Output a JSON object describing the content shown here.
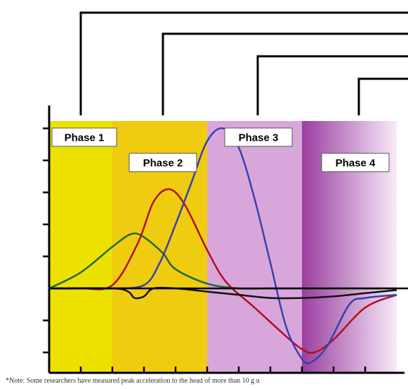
{
  "colors": {
    "phase1": "#ede100",
    "phase2": "#f0cc10",
    "phase3": "#d9a6dc",
    "phase4_dark": "#9a3fa0",
    "phase4_light": "#f8eaf8",
    "axis": "#000000",
    "green": "#1e6b2d",
    "red": "#b0101e",
    "blue": "#3a3fae",
    "black": "#111111"
  },
  "chart_data": {
    "type": "line",
    "title": "",
    "xlabel": "",
    "ylabel": "",
    "xlim": [
      0,
      10
    ],
    "ylim": [
      -2.6,
      5.2
    ],
    "grid": false,
    "x_ticks": [
      1,
      2,
      3,
      4,
      5,
      6,
      7,
      8,
      9,
      10
    ],
    "y_ticks": [
      -2,
      -1,
      1,
      2,
      3,
      4,
      5
    ],
    "phases": [
      {
        "label": "Phase 1",
        "x_start": 0.0,
        "x_end": 2.0,
        "color": "phase1"
      },
      {
        "label": "Phase 2",
        "x_start": 2.0,
        "x_end": 5.0,
        "color": "phase2"
      },
      {
        "label": "Phase 3",
        "x_start": 5.0,
        "x_end": 8.0,
        "color": "phase3"
      },
      {
        "label": "Phase 4",
        "x_start": 8.0,
        "x_end": 11.0,
        "color": "phase4"
      }
    ],
    "series": [
      {
        "color": "green",
        "x": [
          0,
          1,
          2,
          2.6,
          3,
          3.6,
          4,
          5,
          6,
          7,
          8,
          9,
          10,
          11
        ],
        "y": [
          0,
          0.5,
          1.3,
          1.7,
          1.6,
          1.1,
          0.6,
          0.15,
          0,
          0,
          0,
          0,
          0,
          0
        ]
      },
      {
        "color": "red",
        "x": [
          0,
          1,
          2,
          2.8,
          3.3,
          3.8,
          4.3,
          5,
          5.6,
          6.5,
          7.5,
          8,
          8.4,
          9,
          10,
          11
        ],
        "y": [
          0,
          0,
          0.1,
          1.4,
          2.7,
          3.1,
          2.6,
          1.2,
          0.2,
          -0.6,
          -1.5,
          -1.9,
          -2.0,
          -1.6,
          -0.6,
          -0.2
        ]
      },
      {
        "color": "blue",
        "x": [
          0,
          1.5,
          2,
          3,
          3.5,
          4,
          4.5,
          5,
          5.5,
          6,
          6.5,
          7,
          7.5,
          8,
          8.3,
          8.8,
          9.5,
          10,
          11
        ],
        "y": [
          0,
          0,
          0,
          0.1,
          0.8,
          2.0,
          3.3,
          4.6,
          5.0,
          4.4,
          2.8,
          0.8,
          -1.2,
          -2.2,
          -2.3,
          -1.8,
          -0.5,
          -0.3,
          -0.2
        ]
      },
      {
        "color": "black",
        "x": [
          0,
          2,
          2.5,
          2.7,
          3.0,
          3.3,
          4,
          5,
          6,
          7,
          8,
          9,
          10,
          11
        ],
        "y": [
          0,
          0,
          -0.1,
          -0.3,
          -0.25,
          0,
          0,
          -0.1,
          -0.2,
          -0.3,
          -0.3,
          -0.25,
          -0.15,
          -0.05
        ]
      }
    ],
    "brackets": [
      {
        "x": 1.0,
        "level": 0
      },
      {
        "x": 3.6,
        "level": 1
      },
      {
        "x": 6.6,
        "level": 2
      },
      {
        "x": 9.8,
        "level": 3
      }
    ],
    "note": "*Note: Some researchers have measured peak acceleration to the head of more than 10 g u"
  }
}
